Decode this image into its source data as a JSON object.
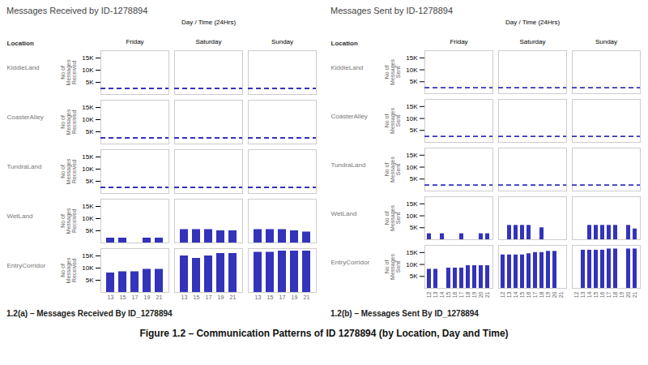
{
  "caption": "Figure 1.2 – Communication Patterns of ID 1278894 (by Location, Day and Time)",
  "chart_data": [
    {
      "type": "bar",
      "title": "Messages Received by ID-1278894",
      "caption": "1.2(a) – Messages Received By ID_1278894",
      "row_header": "Location",
      "x_label": "Day / Time (24Hrs)",
      "y_label": "No of\nMessages\nReceived",
      "x_groups": [
        {
          "name": "Friday",
          "categories": [
            "13",
            "15",
            "17",
            "19",
            "21"
          ]
        },
        {
          "name": "Saturday",
          "categories": [
            "13",
            "15",
            "17",
            "19",
            "21"
          ]
        },
        {
          "name": "Sunday",
          "categories": [
            "13",
            "15",
            "17",
            "19",
            "21"
          ]
        }
      ],
      "series": [
        {
          "name": "KiddieLand",
          "type": "rule",
          "line_style": "dashed",
          "color": "#3333bb",
          "values": [
            2500
          ]
        },
        {
          "name": "CoasterAlley",
          "type": "rule",
          "line_style": "dashed",
          "color": "#3333bb",
          "values": [
            2500
          ]
        },
        {
          "name": "TundraLand",
          "type": "rule",
          "line_style": "dashed",
          "color": "#3333bb",
          "values": [
            2500
          ]
        },
        {
          "name": "WetLand",
          "type": "bar",
          "color": "#3333bb",
          "values": [
            2000,
            2000,
            0,
            2000,
            2000,
            5500,
            5500,
            5500,
            5000,
            5000,
            5500,
            5500,
            5500,
            5000,
            4500
          ]
        },
        {
          "name": "EntryCorridor",
          "type": "bar",
          "color": "#3333bb",
          "values": [
            8000,
            8500,
            8500,
            9500,
            9500,
            15000,
            14000,
            15000,
            16000,
            16000,
            16500,
            16500,
            17000,
            17000,
            17000
          ]
        }
      ],
      "ylim": [
        0,
        18000
      ],
      "yticks": [
        {
          "value": 5000,
          "label": "5K"
        },
        {
          "value": 10000,
          "label": "10K"
        },
        {
          "value": 15000,
          "label": "15K"
        }
      ]
    },
    {
      "type": "bar",
      "title": "Messages Sent by ID-1278894",
      "caption": "1.2(b) – Messages Sent By ID_1278894",
      "row_header": "Location",
      "x_label": "Day / Time (24Hrs)",
      "y_label": "No of\nMessages\nSent",
      "x_groups": [
        {
          "name": "Friday",
          "categories": [
            "12",
            "13",
            "14",
            "15",
            "16",
            "17",
            "18",
            "19",
            "20",
            "21"
          ]
        },
        {
          "name": "Saturday",
          "categories": [
            "12",
            "13",
            "14",
            "15",
            "16",
            "17",
            "18",
            "19",
            "20",
            "21"
          ]
        },
        {
          "name": "Sunday",
          "categories": [
            "12",
            "13",
            "14",
            "15",
            "16",
            "17",
            "18",
            "19",
            "20",
            "21"
          ]
        }
      ],
      "series": [
        {
          "name": "KiddieLand",
          "type": "rule",
          "line_style": "dashed",
          "color": "#3333bb",
          "values": [
            2500
          ]
        },
        {
          "name": "CoasterAlley",
          "type": "rule",
          "line_style": "dashed",
          "color": "#3333bb",
          "values": [
            2500
          ]
        },
        {
          "name": "TundraLand",
          "type": "rule",
          "line_style": "dashed",
          "color": "#3333bb",
          "values": [
            2500
          ]
        },
        {
          "name": "WetLand",
          "type": "bar",
          "color": "#3333bb",
          "values": [
            2500,
            0,
            2500,
            0,
            0,
            2500,
            0,
            0,
            2500,
            2500,
            0,
            6000,
            6000,
            6000,
            6000,
            0,
            5000,
            0,
            0,
            0,
            0,
            0,
            6000,
            6000,
            6000,
            6000,
            6000,
            0,
            6000,
            4500
          ]
        },
        {
          "name": "EntryCorridor",
          "type": "bar",
          "color": "#3333bb",
          "values": [
            8000,
            8000,
            0,
            8500,
            8500,
            8500,
            9500,
            9500,
            9500,
            9500,
            14000,
            14000,
            14000,
            14000,
            14500,
            15000,
            15000,
            15500,
            15500,
            0,
            0,
            16000,
            16000,
            16000,
            16000,
            16500,
            16500,
            0,
            16500,
            16500
          ]
        }
      ],
      "ylim": [
        0,
        18000
      ],
      "yticks": [
        {
          "value": 5000,
          "label": "5K"
        },
        {
          "value": 10000,
          "label": "10K"
        },
        {
          "value": 15000,
          "label": "15K"
        }
      ]
    }
  ]
}
